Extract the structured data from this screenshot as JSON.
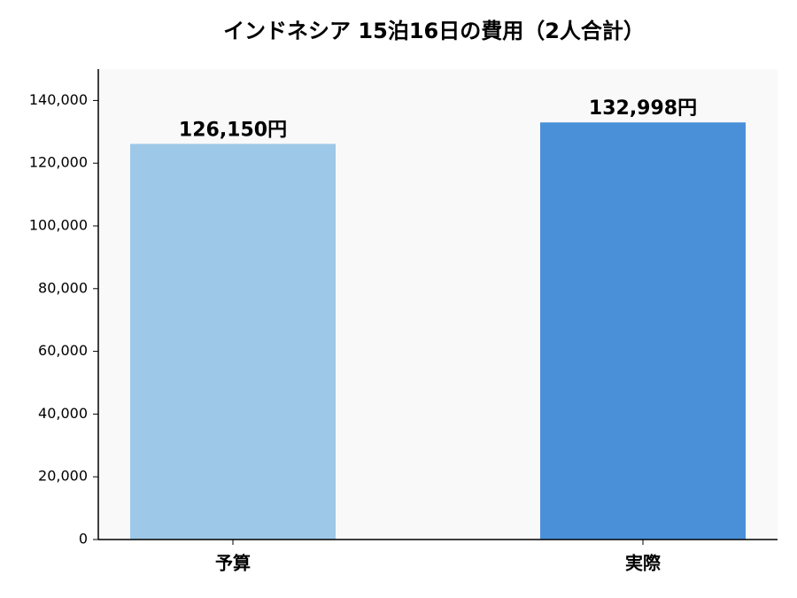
{
  "chart_data": {
    "type": "bar",
    "title": "インドネシア 15泊16日の費用（2人合計）",
    "categories": [
      "予算",
      "実際"
    ],
    "values": [
      126150,
      132998
    ],
    "value_labels": [
      "126,150円",
      "132,998円"
    ],
    "colors": [
      "#9dc8e8",
      "#4a90d9"
    ],
    "ylim": [
      0,
      150000
    ],
    "yticks": [
      0,
      {
        "value": 20000,
        "label": "20,000"
      },
      {
        "value": 40000,
        "label": "40,000"
      },
      {
        "value": 60000,
        "label": "60,000"
      },
      {
        "value": 80000,
        "label": "80,000"
      },
      {
        "value": 100000,
        "label": "100,000"
      },
      {
        "value": 120000,
        "label": "120,000"
      },
      {
        "value": 140000,
        "label": "140,000"
      }
    ],
    "grid": false
  }
}
